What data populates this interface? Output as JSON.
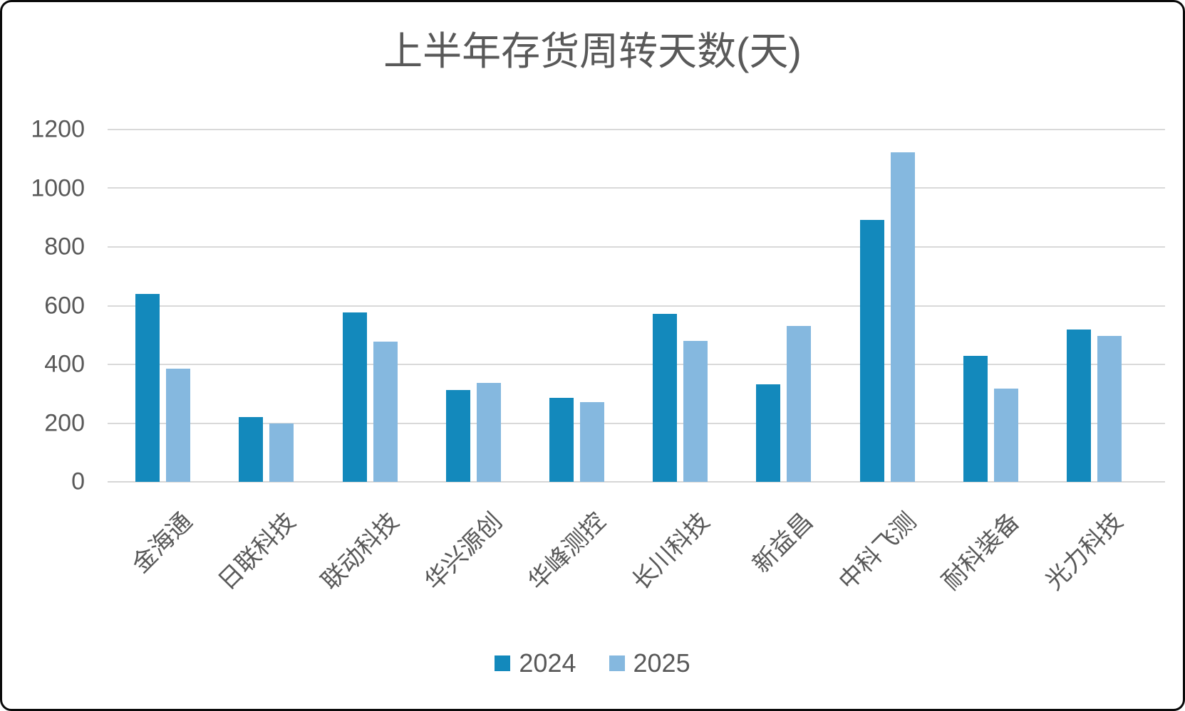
{
  "title": "上半年存货周转天数(天)",
  "colors": {
    "series_2024": "#1389bc",
    "series_2025": "#85b8df",
    "gridline": "#d9d9d9",
    "text": "#595959"
  },
  "legend": {
    "items": [
      {
        "label": "2024",
        "color": "#1389bc"
      },
      {
        "label": "2025",
        "color": "#85b8df"
      }
    ]
  },
  "chart_data": {
    "type": "bar",
    "title": "上半年存货周转天数(天)",
    "categories": [
      "金海通",
      "日联科技",
      "联动科技",
      "华兴源创",
      "华峰测控",
      "长川科技",
      "新益昌",
      "中科飞测",
      "耐科装备",
      "光力科技"
    ],
    "series": [
      {
        "name": "2024",
        "color": "#1389bc",
        "values": [
          640,
          220,
          578,
          313,
          287,
          572,
          333,
          893,
          428,
          518
        ]
      },
      {
        "name": "2025",
        "color": "#85b8df",
        "values": [
          385,
          200,
          477,
          337,
          271,
          479,
          530,
          1123,
          317,
          498
        ]
      }
    ],
    "xlabel": "",
    "ylabel": "",
    "ylim": [
      0,
      1200
    ],
    "yticks": [
      0,
      200,
      400,
      600,
      800,
      1000,
      1200
    ],
    "grid": "horizontal",
    "legend_position": "bottom",
    "xlabel_rotation_deg": 45
  }
}
